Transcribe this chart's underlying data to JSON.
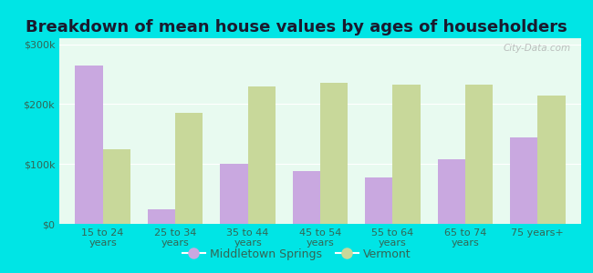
{
  "title": "Breakdown of mean house values by ages of householders",
  "categories": [
    "15 to 24\nyears",
    "25 to 34\nyears",
    "35 to 44\nyears",
    "45 to 54\nyears",
    "55 to 64\nyears",
    "65 to 74\nyears",
    "75 years+"
  ],
  "middletown_values": [
    265000,
    25000,
    100000,
    88000,
    78000,
    108000,
    145000
  ],
  "vermont_values": [
    125000,
    185000,
    230000,
    235000,
    232000,
    232000,
    215000
  ],
  "middletown_color": "#c9a8e0",
  "vermont_color": "#c8d89a",
  "background_color": "#e8faf0",
  "outer_background": "#00e5e5",
  "ylim": [
    0,
    310000
  ],
  "yticks": [
    0,
    100000,
    200000,
    300000
  ],
  "ytick_labels": [
    "$0",
    "$100k",
    "$200k",
    "$300k"
  ],
  "legend_labels": [
    "Middletown Springs",
    "Vermont"
  ],
  "title_fontsize": 13,
  "bar_width": 0.38,
  "watermark": "City-Data.com"
}
